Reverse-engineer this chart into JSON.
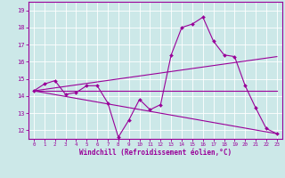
{
  "xlabel": "Windchill (Refroidissement éolien,°C)",
  "ylabel": "",
  "bg_color": "#cce8e8",
  "line_color": "#990099",
  "xlim": [
    -0.5,
    23.5
  ],
  "ylim": [
    11.5,
    19.5
  ],
  "yticks": [
    12,
    13,
    14,
    15,
    16,
    17,
    18,
    19
  ],
  "xticks": [
    0,
    1,
    2,
    3,
    4,
    5,
    6,
    7,
    8,
    9,
    10,
    11,
    12,
    13,
    14,
    15,
    16,
    17,
    18,
    19,
    20,
    21,
    22,
    23
  ],
  "series1_x": [
    0,
    1,
    2,
    3,
    4,
    5,
    6,
    7,
    8,
    9,
    10,
    11,
    12,
    13,
    14,
    15,
    16,
    17,
    18,
    19,
    20,
    21,
    22,
    23
  ],
  "series1_y": [
    14.3,
    14.7,
    14.9,
    14.1,
    14.2,
    14.6,
    14.6,
    13.6,
    11.6,
    12.6,
    13.8,
    13.2,
    13.5,
    16.4,
    18.0,
    18.2,
    18.6,
    17.2,
    16.4,
    16.3,
    14.6,
    13.3,
    12.1,
    11.8
  ],
  "series2_x": [
    0,
    23
  ],
  "series2_y": [
    14.3,
    14.3
  ],
  "series3_x": [
    0,
    23
  ],
  "series3_y": [
    14.3,
    11.8
  ],
  "series4_x": [
    0,
    23
  ],
  "series4_y": [
    14.3,
    16.3
  ]
}
